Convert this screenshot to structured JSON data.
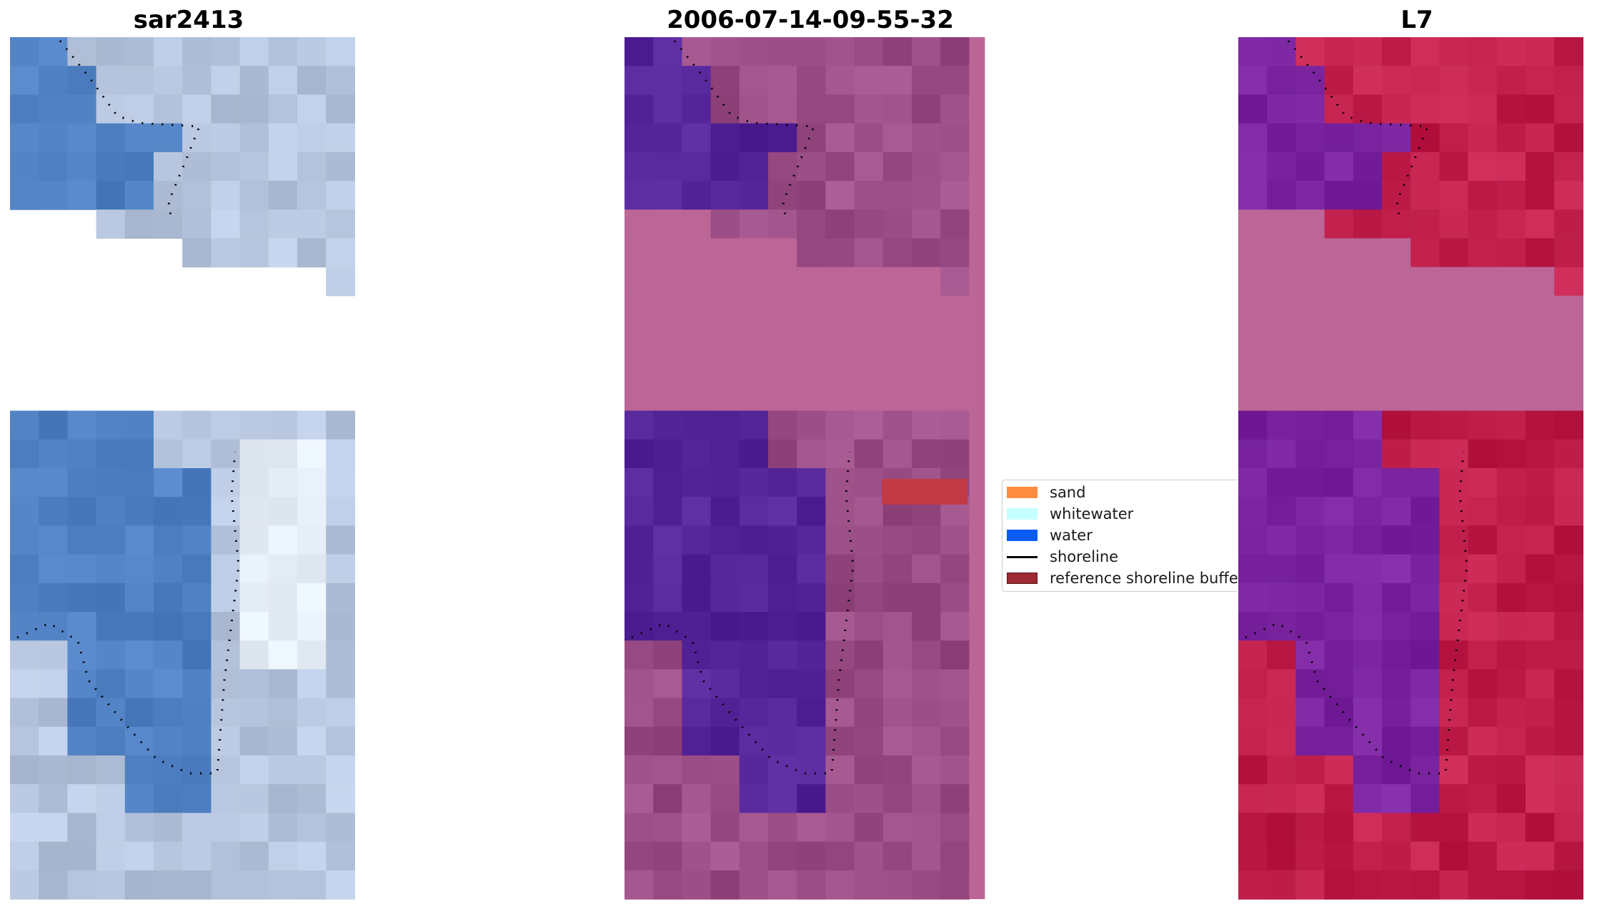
{
  "panels": [
    {
      "title": "sar2413"
    },
    {
      "title": "2006-07-14-09-55-32"
    },
    {
      "title": "L7"
    }
  ],
  "legend": {
    "items": [
      {
        "label": "sand",
        "color": "#fe8c3e",
        "type": "patch"
      },
      {
        "label": "whitewater",
        "color": "#c6ffff",
        "type": "patch"
      },
      {
        "label": "water",
        "color": "#0a5cf5",
        "type": "patch"
      },
      {
        "label": "shoreline",
        "color": "#000000",
        "type": "line"
      },
      {
        "label": "reference shoreline buffer",
        "color": "#9e2b33",
        "type": "patch"
      }
    ]
  },
  "colors": {
    "rgb_water": "#4f80c2",
    "rgb_land": "#b7c6de",
    "class_water": "#542599",
    "class_land": "#9b4d86",
    "class_nodata": "#bc6697",
    "ndwi_water": "#7a24a0",
    "ndwi_land": "#c01f4b",
    "ndwi_nodata": "#bc6697",
    "buffer": "#c23a44"
  }
}
